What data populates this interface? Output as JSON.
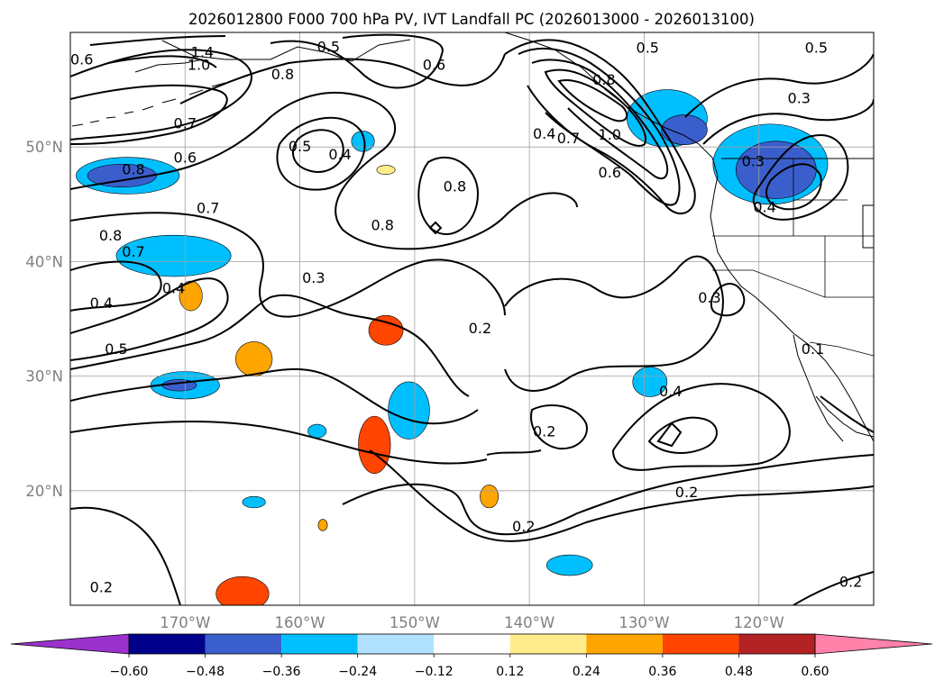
{
  "chart_data": {
    "type": "heatmap",
    "title": "2026012800 F000 700 hPa PV, IVT Landfall PC (2026013000 - 2026013100)",
    "map_projection": "PlateCarree",
    "lon_range": [
      -180,
      -110
    ],
    "lat_range": [
      10,
      60
    ],
    "lon_ticks": [
      -170,
      -160,
      -150,
      -140,
      -130,
      -120
    ],
    "lon_tick_labels": [
      "170°W",
      "160°W",
      "150°W",
      "140°W",
      "130°W",
      "120°W"
    ],
    "lat_ticks": [
      20,
      30,
      40,
      50
    ],
    "lat_tick_labels": [
      "20°N",
      "30°N",
      "40°N",
      "50°N"
    ],
    "grid": true,
    "grid_color": "#a0a0a0",
    "tick_label_color": "#808080",
    "colorbar": {
      "orientation": "horizontal",
      "extend": "both",
      "levels": [
        -0.6,
        -0.48,
        -0.36,
        -0.24,
        -0.12,
        0.12,
        0.24,
        0.36,
        0.48,
        0.6
      ],
      "tick_labels": [
        "−0.60",
        "−0.48",
        "−0.36",
        "−0.24",
        "−0.12",
        "0.12",
        "0.24",
        "0.36",
        "0.48",
        "0.60"
      ],
      "colors": [
        "#9932cc",
        "#00008b",
        "#3a5fcd",
        "#00bfff",
        "#b0e2ff",
        "#ffffff",
        "#ffec8b",
        "#ffa500",
        "#ff4500",
        "#b22222",
        "#ff82ab"
      ]
    },
    "shaded_regions": [
      {
        "level": -0.36,
        "lon": -128,
        "lat": 52.5,
        "rx": 3.5,
        "ry": 2.5
      },
      {
        "level": -0.48,
        "lon": -126.5,
        "lat": 51.5,
        "rx": 2,
        "ry": 1.3
      },
      {
        "level": -0.36,
        "lon": -119,
        "lat": 48.5,
        "rx": 5,
        "ry": 3.5
      },
      {
        "level": -0.48,
        "lon": -118.5,
        "lat": 48,
        "rx": 3.5,
        "ry": 2.5
      },
      {
        "level": -0.36,
        "lon": -175,
        "lat": 47.5,
        "rx": 4.5,
        "ry": 1.6
      },
      {
        "level": -0.48,
        "lon": -175.5,
        "lat": 47.5,
        "rx": 3,
        "ry": 1
      },
      {
        "level": -0.36,
        "lon": -171,
        "lat": 40.5,
        "rx": 5,
        "ry": 1.8
      },
      {
        "level": -0.36,
        "lon": -170,
        "lat": 29.2,
        "rx": 3,
        "ry": 1.2
      },
      {
        "level": -0.48,
        "lon": -170.5,
        "lat": 29.2,
        "rx": 1.5,
        "ry": 0.5
      },
      {
        "level": -0.36,
        "lon": -150.5,
        "lat": 27,
        "rx": 1.8,
        "ry": 2.5
      },
      {
        "level": -0.36,
        "lon": -129.5,
        "lat": 29.5,
        "rx": 1.5,
        "ry": 1.3
      },
      {
        "level": -0.36,
        "lon": -136.5,
        "lat": 13.5,
        "rx": 2,
        "ry": 0.9
      },
      {
        "level": -0.36,
        "lon": -154.5,
        "lat": 50.5,
        "rx": 1,
        "ry": 0.9
      },
      {
        "level": -0.36,
        "lon": -158.5,
        "lat": 25.2,
        "rx": 0.8,
        "ry": 0.6
      },
      {
        "level": -0.36,
        "lon": -164,
        "lat": 19,
        "rx": 1,
        "ry": 0.5
      },
      {
        "level": 0.36,
        "lon": -152.5,
        "lat": 34,
        "rx": 1.5,
        "ry": 1.3
      },
      {
        "level": 0.24,
        "lon": -164,
        "lat": 31.5,
        "rx": 1.6,
        "ry": 1.5
      },
      {
        "level": 0.36,
        "lon": -153.5,
        "lat": 24,
        "rx": 1.4,
        "ry": 2.5
      },
      {
        "level": 0.24,
        "lon": -169.5,
        "lat": 37,
        "rx": 1,
        "ry": 1.3
      },
      {
        "level": 0.36,
        "lon": -165,
        "lat": 11,
        "rx": 2.3,
        "ry": 1.5
      },
      {
        "level": 0.24,
        "lon": -143.5,
        "lat": 19.5,
        "rx": 0.8,
        "ry": 1
      },
      {
        "level": 0.12,
        "lon": -152.5,
        "lat": 48,
        "rx": 0.8,
        "ry": 0.4
      },
      {
        "level": 0.24,
        "lon": -158,
        "lat": 17,
        "rx": 0.4,
        "ry": 0.5
      }
    ],
    "contour_labels": [
      {
        "text": "0.6",
        "lon": -179,
        "lat": 57.7
      },
      {
        "text": "1.4",
        "lon": -168.5,
        "lat": 58.3
      },
      {
        "text": "1.0",
        "lon": -168.8,
        "lat": 57.2
      },
      {
        "text": "0.8",
        "lon": -161.5,
        "lat": 56.4
      },
      {
        "text": "0.5",
        "lon": -157.5,
        "lat": 58.8
      },
      {
        "text": "0.6",
        "lon": -148.3,
        "lat": 57.2
      },
      {
        "text": "0.7",
        "lon": -170,
        "lat": 52.1
      },
      {
        "text": "0.6",
        "lon": -170,
        "lat": 49.1
      },
      {
        "text": "0.8",
        "lon": -174.5,
        "lat": 48.1
      },
      {
        "text": "0.5",
        "lon": -160,
        "lat": 50.1
      },
      {
        "text": "0.4",
        "lon": -156.5,
        "lat": 49.4
      },
      {
        "text": "0.8",
        "lon": -146.5,
        "lat": 46.6
      },
      {
        "text": "0.8",
        "lon": -152.8,
        "lat": 43.2
      },
      {
        "text": "0.7",
        "lon": -168,
        "lat": 44.7
      },
      {
        "text": "0.8",
        "lon": -176.5,
        "lat": 42.3
      },
      {
        "text": "0.7",
        "lon": -174.5,
        "lat": 40.9
      },
      {
        "text": "0.3",
        "lon": -158.8,
        "lat": 38.6
      },
      {
        "text": "0.4",
        "lon": -171,
        "lat": 37.7
      },
      {
        "text": "0.4",
        "lon": -177.3,
        "lat": 36.4
      },
      {
        "text": "0.5",
        "lon": -176,
        "lat": 32.4
      },
      {
        "text": "0.5",
        "lon": -129.7,
        "lat": 58.7
      },
      {
        "text": "0.8",
        "lon": -133.5,
        "lat": 55.9
      },
      {
        "text": "0.4",
        "lon": -138.7,
        "lat": 51.2
      },
      {
        "text": "0.7",
        "lon": -136.6,
        "lat": 50.8
      },
      {
        "text": "1.0",
        "lon": -133,
        "lat": 51.1
      },
      {
        "text": "0.6",
        "lon": -133,
        "lat": 47.8
      },
      {
        "text": "0.5",
        "lon": -115,
        "lat": 58.7
      },
      {
        "text": "0.3",
        "lon": -116.5,
        "lat": 54.3
      },
      {
        "text": "0.3",
        "lon": -120.5,
        "lat": 48.8
      },
      {
        "text": "0.4",
        "lon": -119.5,
        "lat": 44.8
      },
      {
        "text": "0.2",
        "lon": -144.3,
        "lat": 34.2
      },
      {
        "text": "0.3",
        "lon": -124.3,
        "lat": 36.9
      },
      {
        "text": "0.1",
        "lon": -115.3,
        "lat": 32.4
      },
      {
        "text": "0.4",
        "lon": -127.7,
        "lat": 28.7
      },
      {
        "text": "0.2",
        "lon": -138.7,
        "lat": 25.2
      },
      {
        "text": "0.2",
        "lon": -126.3,
        "lat": 19.9
      },
      {
        "text": "0.2",
        "lon": -140.5,
        "lat": 16.9
      },
      {
        "text": "0.2",
        "lon": -177.3,
        "lat": 11.6
      },
      {
        "text": "0.2",
        "lon": -112,
        "lat": 12.1
      }
    ]
  }
}
